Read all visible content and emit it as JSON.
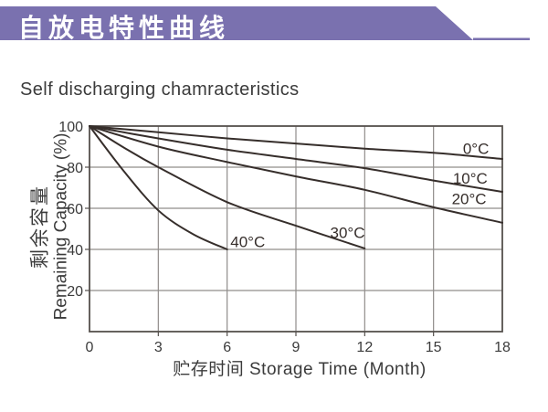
{
  "banner": {
    "title": "自放电特性曲线"
  },
  "subtitle": "Self discharging chamracteristics",
  "colors": {
    "banner": "#7a71af",
    "curve": "#362e2b",
    "grid": "#908d8b",
    "frame": "#55504d",
    "text": "#3b3b3b"
  },
  "chart_data": {
    "type": "line",
    "title": "Self discharging chamracteristics",
    "xlabel": "贮存时间 Storage Time (Month)",
    "ylabel": [
      "剩余容量",
      "Remaining Capacity (%)"
    ],
    "xlim": [
      0,
      18
    ],
    "ylim": [
      0,
      100
    ],
    "x_ticks": [
      0,
      3,
      6,
      9,
      12,
      15,
      18
    ],
    "y_ticks": [
      100,
      80,
      60,
      40,
      20
    ],
    "grid": true,
    "legend_position": "inline-labels",
    "series": [
      {
        "name": "0°C",
        "label_pos": [
          16.85,
          89
        ],
        "points": [
          [
            0,
            100
          ],
          [
            3,
            97
          ],
          [
            6,
            94
          ],
          [
            9,
            91.5
          ],
          [
            12,
            89
          ],
          [
            15,
            87
          ],
          [
            18,
            84
          ]
        ]
      },
      {
        "name": "10°C",
        "label_pos": [
          16.6,
          74.5
        ],
        "points": [
          [
            0,
            100
          ],
          [
            3,
            94
          ],
          [
            6,
            88.5
          ],
          [
            9,
            84
          ],
          [
            12,
            79.5
          ],
          [
            15,
            73.5
          ],
          [
            18,
            68
          ]
        ]
      },
      {
        "name": "20°C",
        "label_pos": [
          16.55,
          64.5
        ],
        "points": [
          [
            0,
            100
          ],
          [
            3,
            90
          ],
          [
            6,
            82.5
          ],
          [
            9,
            75.5
          ],
          [
            12,
            69
          ],
          [
            15,
            60.5
          ],
          [
            18,
            53
          ]
        ]
      },
      {
        "name": "30°C",
        "label_pos": [
          11.25,
          48
        ],
        "points": [
          [
            0,
            100
          ],
          [
            1.5,
            89.5
          ],
          [
            3,
            80
          ],
          [
            6,
            63
          ],
          [
            9,
            51.5
          ],
          [
            12,
            40.5
          ]
        ]
      },
      {
        "name": "40°C",
        "label_pos": [
          6.9,
          43.5
        ],
        "points": [
          [
            0,
            100
          ],
          [
            1.5,
            78
          ],
          [
            3,
            59
          ],
          [
            4.5,
            47.5
          ],
          [
            6,
            40
          ]
        ]
      }
    ]
  }
}
